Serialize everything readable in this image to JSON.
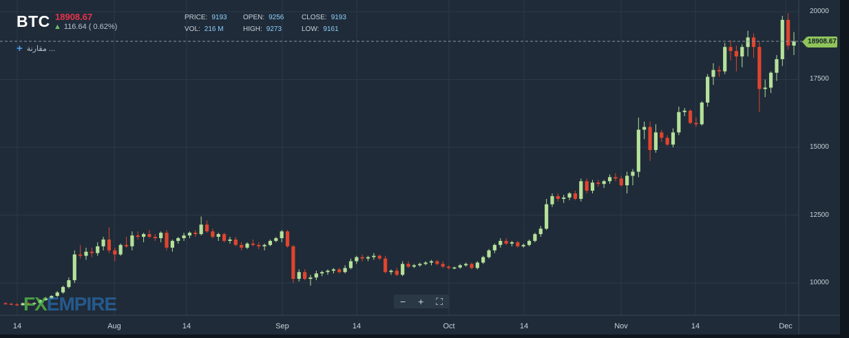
{
  "header": {
    "symbol": "BTC",
    "last_price": "18908.67",
    "change": "116.64 ( 0.62%)",
    "stats": [
      {
        "label": "PRICE:",
        "value": "9193"
      },
      {
        "label": "OPEN:",
        "value": "9256"
      },
      {
        "label": "CLOSE:",
        "value": "9193"
      },
      {
        "label": "VOL:",
        "value": "216 M"
      },
      {
        "label": "HIGH:",
        "value": "9273"
      },
      {
        "label": "LOW:",
        "value": "9161"
      }
    ],
    "compare_label": "مقارنة ..."
  },
  "price_tag": "18908.67",
  "zoom_controls": {
    "minus": "−",
    "plus": "+",
    "fullscreen": "⛶"
  },
  "logo": {
    "fx": "FX",
    "empire": "EMPIRE"
  },
  "colors": {
    "up": "#b5e19a",
    "down": "#e0442e",
    "grid": "#2b3a49",
    "background": "#1f2b38"
  },
  "chart_data": {
    "type": "candlestick",
    "y_ticks": [
      "20000",
      "17500",
      "15000",
      "12500",
      "10000"
    ],
    "x_ticks": [
      "14",
      "Aug",
      "14",
      "Sep",
      "14",
      "Oct",
      "14",
      "Nov",
      "14",
      "Dec"
    ],
    "ylim": [
      8800,
      20000
    ],
    "grid": true,
    "current_price_line": 18908.67,
    "candles": [
      [
        9250,
        9290,
        9200,
        9230
      ],
      [
        9230,
        9270,
        9180,
        9210
      ],
      [
        9210,
        9260,
        9150,
        9180
      ],
      [
        9180,
        9280,
        9160,
        9250
      ],
      [
        9250,
        9300,
        9200,
        9240
      ],
      [
        9240,
        9290,
        9180,
        9260
      ],
      [
        9260,
        9400,
        9230,
        9370
      ],
      [
        9370,
        9480,
        9340,
        9430
      ],
      [
        9430,
        9550,
        9400,
        9520
      ],
      [
        9520,
        9700,
        9480,
        9650
      ],
      [
        9650,
        9900,
        9600,
        9850
      ],
      [
        9850,
        10200,
        9800,
        10100
      ],
      [
        10100,
        11200,
        10000,
        11050
      ],
      [
        11050,
        11400,
        10900,
        11000
      ],
      [
        11000,
        11300,
        10850,
        11150
      ],
      [
        11150,
        11300,
        10950,
        11100
      ],
      [
        11100,
        11500,
        11000,
        11350
      ],
      [
        11350,
        11700,
        11200,
        11600
      ],
      [
        11600,
        12050,
        11100,
        11200
      ],
      [
        11200,
        11300,
        10800,
        11050
      ],
      [
        11050,
        11450,
        11000,
        11400
      ],
      [
        11400,
        11700,
        11300,
        11350
      ],
      [
        11350,
        11900,
        11200,
        11750
      ],
      [
        11750,
        11900,
        11600,
        11700
      ],
      [
        11700,
        11850,
        11500,
        11800
      ],
      [
        11800,
        11950,
        11650,
        11700
      ],
      [
        11700,
        11800,
        11550,
        11650
      ],
      [
        11650,
        11900,
        11500,
        11850
      ],
      [
        11850,
        11950,
        11200,
        11300
      ],
      [
        11300,
        11600,
        11150,
        11550
      ],
      [
        11550,
        11700,
        11450,
        11650
      ],
      [
        11650,
        11850,
        11550,
        11750
      ],
      [
        11750,
        11900,
        11650,
        11850
      ],
      [
        11850,
        11950,
        11700,
        11800
      ],
      [
        11800,
        12450,
        11750,
        12150
      ],
      [
        12150,
        12300,
        11850,
        11900
      ],
      [
        11900,
        12000,
        11650,
        11700
      ],
      [
        11700,
        11850,
        11550,
        11800
      ],
      [
        11800,
        11850,
        11500,
        11550
      ],
      [
        11550,
        11700,
        11450,
        11600
      ],
      [
        11600,
        11700,
        11350,
        11400
      ],
      [
        11400,
        11500,
        11200,
        11300
      ],
      [
        11300,
        11500,
        11250,
        11450
      ],
      [
        11450,
        11600,
        11350,
        11400
      ],
      [
        11400,
        11500,
        11250,
        11350
      ],
      [
        11350,
        11450,
        11200,
        11400
      ],
      [
        11400,
        11600,
        11350,
        11550
      ],
      [
        11550,
        11700,
        11500,
        11650
      ],
      [
        11650,
        11950,
        11500,
        11900
      ],
      [
        11900,
        11950,
        11300,
        11350
      ],
      [
        11350,
        11400,
        10000,
        10150
      ],
      [
        10150,
        10500,
        10050,
        10400
      ],
      [
        10400,
        10500,
        10100,
        10150
      ],
      [
        10150,
        10300,
        9900,
        10200
      ],
      [
        10200,
        10450,
        10100,
        10350
      ],
      [
        10350,
        10450,
        10250,
        10400
      ],
      [
        10400,
        10500,
        10300,
        10450
      ],
      [
        10450,
        10550,
        10350,
        10500
      ],
      [
        10500,
        10550,
        10350,
        10400
      ],
      [
        10400,
        10650,
        10350,
        10550
      ],
      [
        10550,
        10900,
        10500,
        10800
      ],
      [
        10800,
        11000,
        10700,
        10950
      ],
      [
        10950,
        11050,
        10800,
        10900
      ],
      [
        10900,
        11000,
        10800,
        10950
      ],
      [
        10950,
        11100,
        10850,
        11000
      ],
      [
        11000,
        11050,
        10850,
        10900
      ],
      [
        10900,
        11000,
        10350,
        10400
      ],
      [
        10400,
        10500,
        10300,
        10450
      ],
      [
        10450,
        10550,
        10250,
        10300
      ],
      [
        10300,
        10800,
        10250,
        10700
      ],
      [
        10700,
        10800,
        10550,
        10600
      ],
      [
        10600,
        10700,
        10550,
        10650
      ],
      [
        10650,
        10750,
        10600,
        10700
      ],
      [
        10700,
        10800,
        10650,
        10750
      ],
      [
        10750,
        10850,
        10650,
        10800
      ],
      [
        10800,
        10850,
        10650,
        10700
      ],
      [
        10700,
        10800,
        10550,
        10600
      ],
      [
        10600,
        10650,
        10500,
        10550
      ],
      [
        10550,
        10600,
        10500,
        10570
      ],
      [
        10570,
        10700,
        10520,
        10650
      ],
      [
        10650,
        10750,
        10600,
        10700
      ],
      [
        10700,
        10750,
        10500,
        10550
      ],
      [
        10550,
        10800,
        10500,
        10750
      ],
      [
        10750,
        11000,
        10700,
        10950
      ],
      [
        10950,
        11250,
        10900,
        11200
      ],
      [
        11200,
        11450,
        11100,
        11400
      ],
      [
        11400,
        11650,
        11300,
        11550
      ],
      [
        11550,
        11650,
        11400,
        11450
      ],
      [
        11450,
        11550,
        11350,
        11500
      ],
      [
        11500,
        11550,
        11300,
        11350
      ],
      [
        11350,
        11450,
        11300,
        11400
      ],
      [
        11400,
        11600,
        11350,
        11550
      ],
      [
        11550,
        11850,
        11500,
        11800
      ],
      [
        11800,
        12100,
        11700,
        12000
      ],
      [
        12000,
        13100,
        11950,
        12900
      ],
      [
        12900,
        13300,
        12800,
        13200
      ],
      [
        13200,
        13300,
        13000,
        13100
      ],
      [
        13100,
        13250,
        12950,
        13150
      ],
      [
        13150,
        13350,
        13050,
        13300
      ],
      [
        13300,
        13400,
        13050,
        13100
      ],
      [
        13100,
        13850,
        13000,
        13750
      ],
      [
        13750,
        13850,
        13300,
        13400
      ],
      [
        13400,
        13800,
        13300,
        13700
      ],
      [
        13700,
        13800,
        13550,
        13650
      ],
      [
        13650,
        13800,
        13500,
        13750
      ],
      [
        13750,
        14000,
        13650,
        13900
      ],
      [
        13900,
        14050,
        13750,
        13850
      ],
      [
        13850,
        13950,
        13550,
        13600
      ],
      [
        13600,
        14100,
        13300,
        13950
      ],
      [
        13950,
        14200,
        13600,
        14100
      ],
      [
        14100,
        16100,
        13900,
        15650
      ],
      [
        15650,
        15950,
        15300,
        15750
      ],
      [
        15750,
        15950,
        14500,
        14900
      ],
      [
        14900,
        15850,
        14800,
        15550
      ],
      [
        15550,
        15650,
        15200,
        15350
      ],
      [
        15350,
        15450,
        15050,
        15100
      ],
      [
        15100,
        15700,
        15000,
        15550
      ],
      [
        15550,
        16500,
        15450,
        16300
      ],
      [
        16300,
        16450,
        16150,
        16350
      ],
      [
        16350,
        16400,
        15850,
        15900
      ],
      [
        15900,
        16100,
        15750,
        15850
      ],
      [
        15850,
        16700,
        15800,
        16650
      ],
      [
        16650,
        17700,
        16500,
        17600
      ],
      [
        17600,
        18100,
        17300,
        17850
      ],
      [
        17850,
        18000,
        17600,
        17800
      ],
      [
        17800,
        18850,
        17700,
        18700
      ],
      [
        18700,
        18950,
        18200,
        18550
      ],
      [
        18550,
        18750,
        17800,
        18350
      ],
      [
        18350,
        18800,
        17950,
        18700
      ],
      [
        18700,
        19300,
        18350,
        19050
      ],
      [
        19050,
        19200,
        18300,
        18700
      ],
      [
        18700,
        18900,
        16300,
        17150
      ],
      [
        17150,
        17500,
        16850,
        17200
      ],
      [
        17200,
        17800,
        17000,
        17750
      ],
      [
        17750,
        18400,
        17450,
        18250
      ],
      [
        18250,
        19850,
        18000,
        19700
      ],
      [
        19700,
        19950,
        18600,
        18750
      ],
      [
        18750,
        19250,
        18400,
        18900
      ]
    ]
  }
}
